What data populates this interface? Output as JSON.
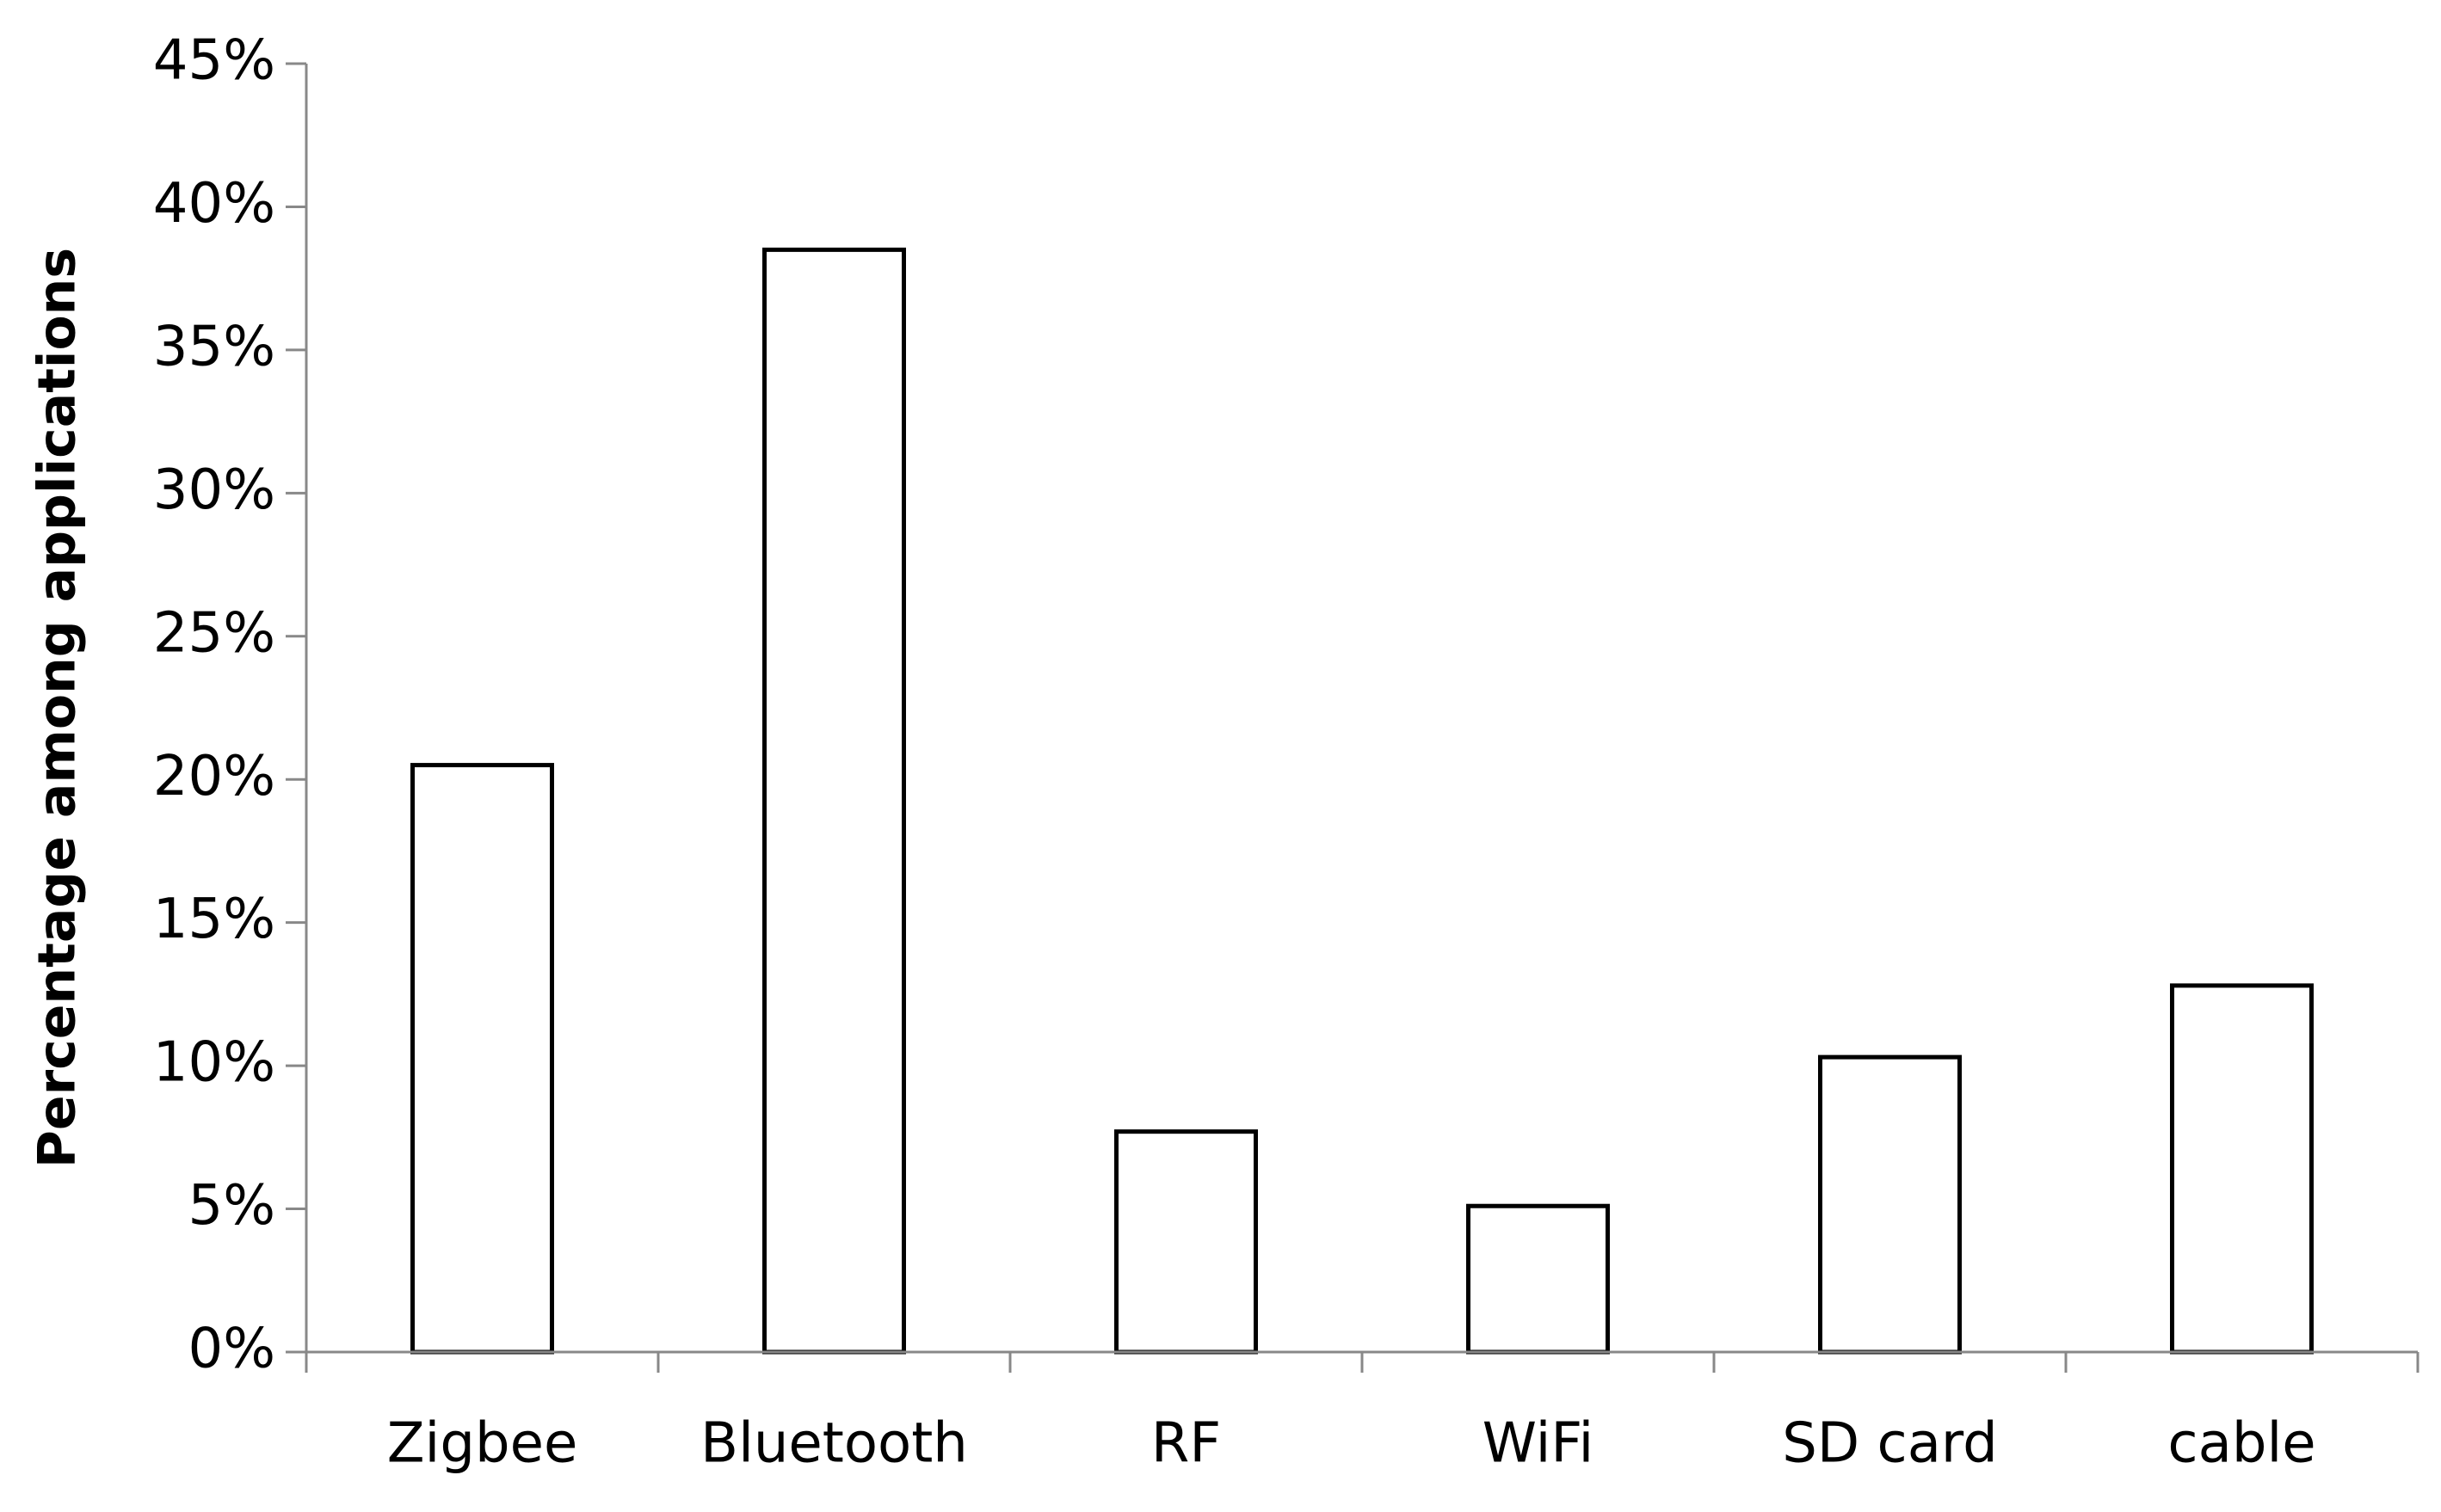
{
  "chart_data": {
    "type": "bar",
    "y_label": "Percentage among applications",
    "categories": [
      "Zigbee",
      "Bluetooth",
      "RF",
      "WiFi",
      "SD card",
      "cable"
    ],
    "values": [
      20.5,
      38.5,
      7.7,
      5.1,
      10.3,
      12.8
    ],
    "color": "#ffffff",
    "ylim": [
      0,
      45
    ],
    "yticks": [
      {
        "value": 0,
        "label": "0%"
      },
      {
        "value": 5,
        "label": "5%"
      },
      {
        "value": 10,
        "label": "10%"
      },
      {
        "value": 15,
        "label": "15%"
      },
      {
        "value": 20,
        "label": "20%"
      },
      {
        "value": 25,
        "label": "25%"
      },
      {
        "value": 30,
        "label": "30%"
      },
      {
        "value": 35,
        "label": "35%"
      },
      {
        "value": 40,
        "label": "40%"
      },
      {
        "value": 45,
        "label": "45%"
      }
    ],
    "grid": false
  }
}
